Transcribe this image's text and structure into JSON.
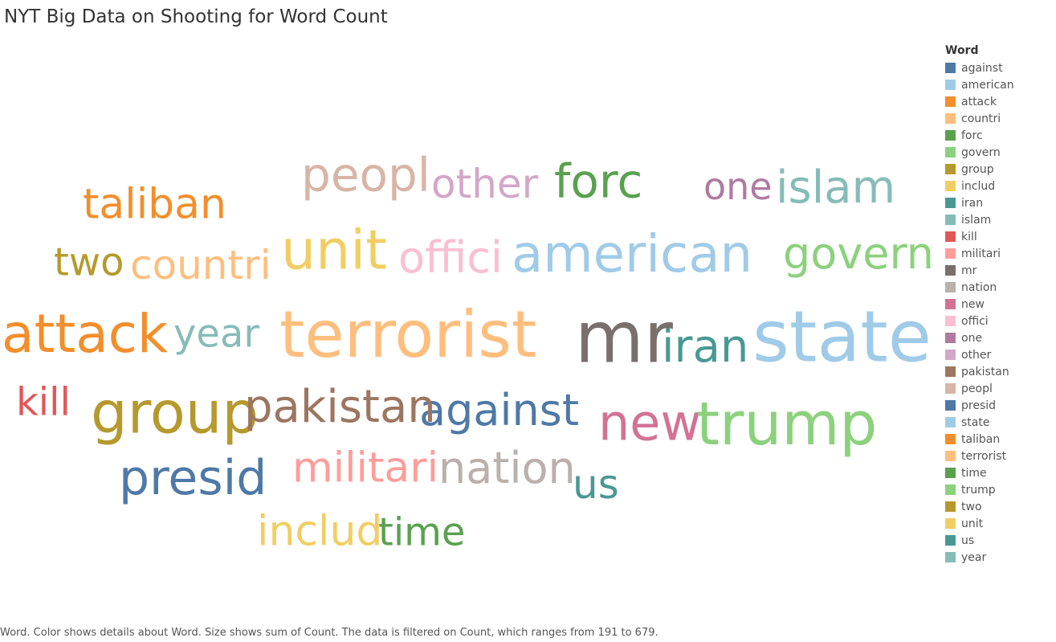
{
  "chart_data": {
    "type": "word-cloud",
    "title": "NYT Big Data on Shooting for Word Count",
    "caption": "Word.  Color shows details about Word.  Size shows sum of Count. The data is filtered on Count, which ranges from 191 to 679.",
    "legend": {
      "title": "Word",
      "placement": "right"
    },
    "words": [
      {
        "word": "against",
        "color": "#4e79a7",
        "count": 300
      },
      {
        "word": "american",
        "color": "#a0cbe8",
        "count": 420
      },
      {
        "word": "attack",
        "color": "#f28e2b",
        "count": 420
      },
      {
        "word": "countri",
        "color": "#ffbe7d",
        "count": 260
      },
      {
        "word": "forc",
        "color": "#59a14f",
        "count": 300
      },
      {
        "word": "govern",
        "color": "#8cd17d",
        "count": 310
      },
      {
        "word": "group",
        "color": "#b6992d",
        "count": 430
      },
      {
        "word": "includ",
        "color": "#f1ce63",
        "count": 250
      },
      {
        "word": "iran",
        "color": "#499894",
        "count": 330
      },
      {
        "word": "islam",
        "color": "#86bcb6",
        "count": 300
      },
      {
        "word": "kill",
        "color": "#e15759",
        "count": 250
      },
      {
        "word": "militari",
        "color": "#ff9d9a",
        "count": 260
      },
      {
        "word": "mr",
        "color": "#79706e",
        "count": 679
      },
      {
        "word": "nation",
        "color": "#bab0ac",
        "count": 280
      },
      {
        "word": "new",
        "color": "#d37295",
        "count": 350
      },
      {
        "word": "offici",
        "color": "#fabfd2",
        "count": 280
      },
      {
        "word": "one",
        "color": "#b07aa1",
        "count": 230
      },
      {
        "word": "other",
        "color": "#d4a6c8",
        "count": 250
      },
      {
        "word": "pakistan",
        "color": "#9d7660",
        "count": 300
      },
      {
        "word": "peopl",
        "color": "#d7b5a6",
        "count": 300
      },
      {
        "word": "presid",
        "color": "#4e79a7",
        "count": 330
      },
      {
        "word": "state",
        "color": "#a0cbe8",
        "count": 620
      },
      {
        "word": "taliban",
        "color": "#f28e2b",
        "count": 300
      },
      {
        "word": "terrorist",
        "color": "#ffbe7d",
        "count": 560
      },
      {
        "word": "time",
        "color": "#59a14f",
        "count": 230
      },
      {
        "word": "trump",
        "color": "#8cd17d",
        "count": 480
      },
      {
        "word": "two",
        "color": "#b6992d",
        "count": 250
      },
      {
        "word": "unit",
        "color": "#f1ce63",
        "count": 440
      },
      {
        "word": "us",
        "color": "#499894",
        "count": 230
      },
      {
        "word": "year",
        "color": "#86bcb6",
        "count": 250
      }
    ]
  }
}
